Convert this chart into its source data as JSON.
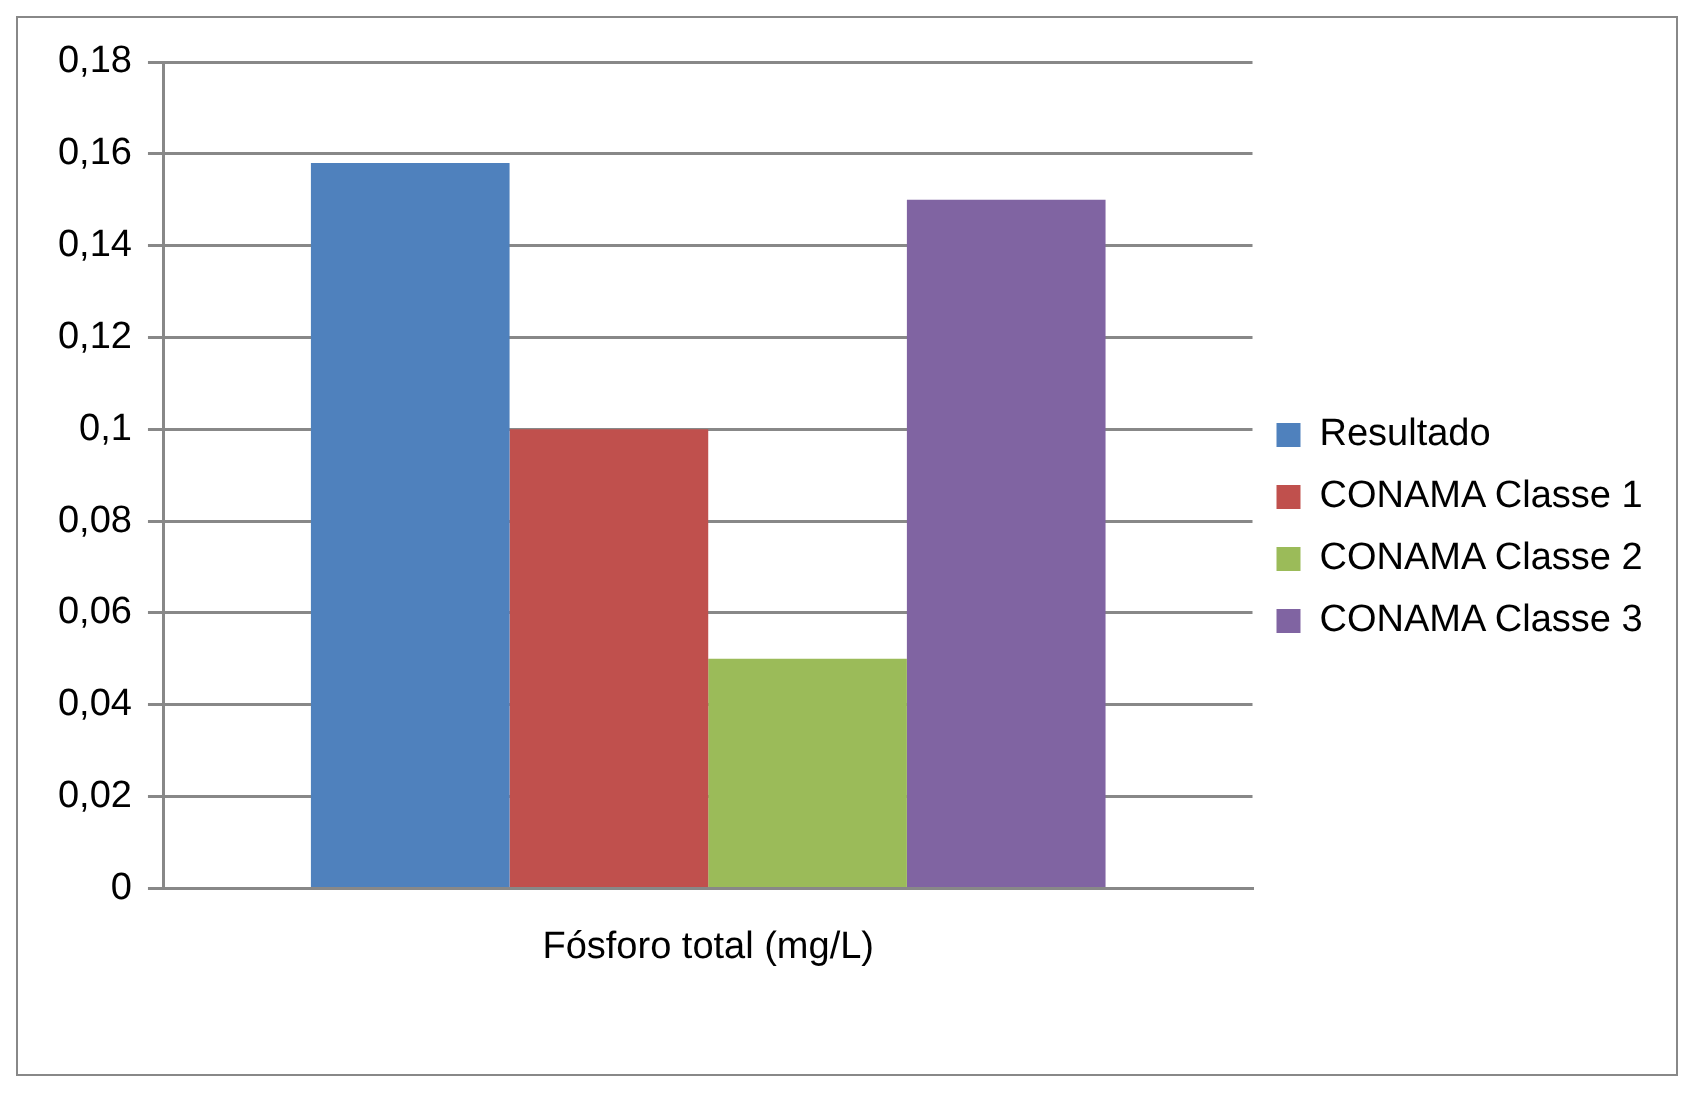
{
  "chart_data": {
    "type": "bar",
    "categories": [
      "Fósforo total (mg/L)"
    ],
    "series": [
      {
        "name": "Resultado",
        "color": "#4f81bd",
        "values": [
          0.158
        ]
      },
      {
        "name": "CONAMA Classe 1",
        "color": "#c0504d",
        "values": [
          0.1
        ]
      },
      {
        "name": "CONAMA Classe 2",
        "color": "#9bbb59",
        "values": [
          0.05
        ]
      },
      {
        "name": "CONAMA Classe 3",
        "color": "#8064a2",
        "values": [
          0.15
        ]
      }
    ],
    "ylim": [
      0,
      0.18
    ],
    "yticks": [
      0,
      {
        "value": 0.02,
        "label": "0,02"
      },
      {
        "value": 0.04,
        "label": "0,04"
      },
      {
        "value": 0.06,
        "label": "0,06"
      },
      {
        "value": 0.08,
        "label": "0,08"
      },
      {
        "value": 0.1,
        "label": "0,1"
      },
      {
        "value": 0.12,
        "label": "0,12"
      },
      {
        "value": 0.14,
        "label": "0,14"
      },
      {
        "value": 0.16,
        "label": "0,16"
      },
      {
        "value": 0.18,
        "label": "0,18"
      }
    ],
    "grid": "y",
    "legend": "right"
  }
}
